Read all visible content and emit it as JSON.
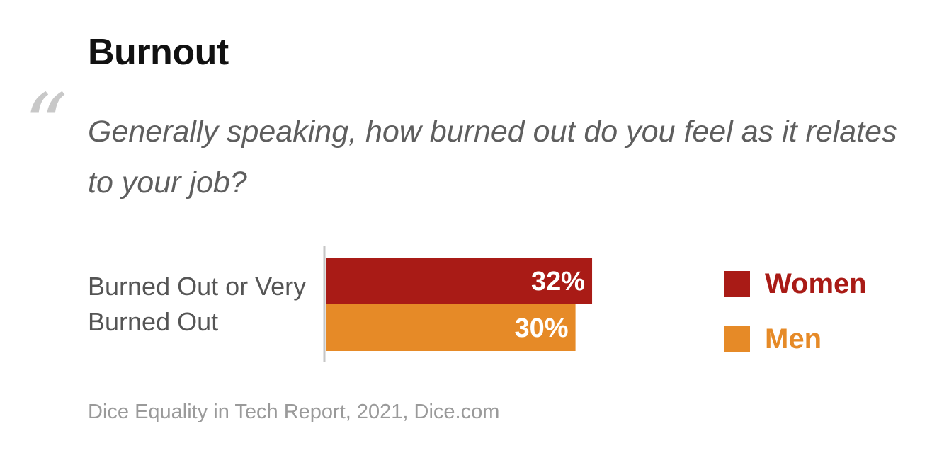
{
  "title": "Burnout",
  "quote_mark": "“",
  "question": "Generally speaking, how burned out do you feel as it relates to your job?",
  "source": "Dice Equality in Tech Report, 2021, Dice.com",
  "chart_data": {
    "type": "bar",
    "orientation": "horizontal",
    "categories": [
      "Burned Out or Very Burned Out"
    ],
    "series": [
      {
        "name": "Women",
        "values": [
          32
        ],
        "labels": [
          "32%"
        ],
        "color": "#a91b16"
      },
      {
        "name": "Men",
        "values": [
          30
        ],
        "labels": [
          "30%"
        ],
        "color": "#e68a27"
      }
    ],
    "unit": "%",
    "grid": false,
    "legend_position": "right"
  }
}
